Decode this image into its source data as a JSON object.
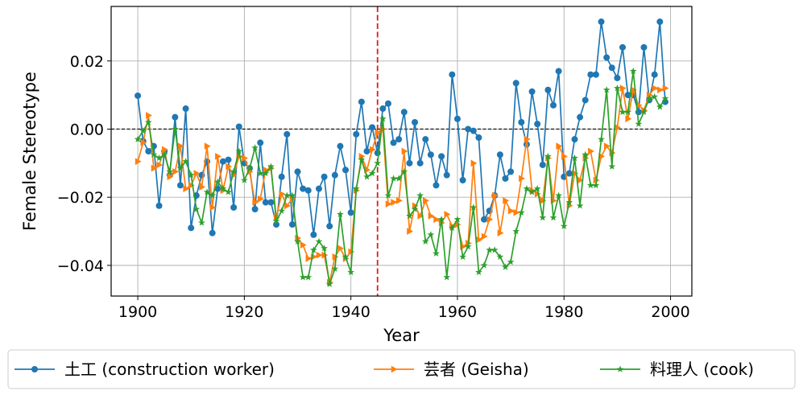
{
  "chart_data": {
    "type": "line",
    "xlabel": "Year",
    "ylabel": "Female Stereotype",
    "xlim": [
      1895,
      2004
    ],
    "ylim": [
      -0.049,
      0.036
    ],
    "xticks": [
      1900,
      1920,
      1940,
      1960,
      1980,
      2000
    ],
    "yticks": [
      -0.04,
      -0.02,
      0.0,
      0.02
    ],
    "ytick_labels": [
      "−0.04",
      "−0.02",
      "0.00",
      "0.02"
    ],
    "grid": true,
    "reference_lines": {
      "y": 0,
      "x": 1945
    },
    "legend_position": "bottom",
    "colors": {
      "construction": "#1f77b4",
      "geisha": "#ff7f0e",
      "cook": "#2ca02c",
      "vline": "#e41a1c"
    },
    "x": [
      1900,
      1901,
      1902,
      1903,
      1904,
      1905,
      1906,
      1907,
      1908,
      1909,
      1910,
      1911,
      1912,
      1913,
      1914,
      1915,
      1916,
      1917,
      1918,
      1919,
      1920,
      1921,
      1922,
      1923,
      1924,
      1925,
      1926,
      1927,
      1928,
      1929,
      1930,
      1931,
      1932,
      1933,
      1934,
      1935,
      1936,
      1937,
      1938,
      1939,
      1940,
      1941,
      1942,
      1943,
      1944,
      1945,
      1946,
      1947,
      1948,
      1949,
      1950,
      1951,
      1952,
      1953,
      1954,
      1955,
      1956,
      1957,
      1958,
      1959,
      1960,
      1961,
      1962,
      1963,
      1964,
      1965,
      1966,
      1967,
      1968,
      1969,
      1970,
      1971,
      1972,
      1973,
      1974,
      1975,
      1976,
      1977,
      1978,
      1979,
      1980,
      1981,
      1982,
      1983,
      1984,
      1985,
      1986,
      1987,
      1988,
      1989,
      1990,
      1991,
      1992,
      1993,
      1994,
      1995,
      1996,
      1997,
      1998,
      1999
    ],
    "series": [
      {
        "name": "土工 (construction worker)",
        "marker": "circle",
        "values": [
          0.0098,
          -0.0035,
          -0.0065,
          -0.005,
          -0.0225,
          -0.0065,
          -0.0135,
          0.0035,
          -0.0165,
          0.006,
          -0.029,
          -0.0195,
          -0.0135,
          -0.0095,
          -0.0305,
          -0.0175,
          -0.0095,
          -0.009,
          -0.023,
          0.0007,
          -0.01,
          -0.0115,
          -0.0235,
          -0.004,
          -0.0215,
          -0.0215,
          -0.028,
          -0.014,
          -0.0015,
          -0.028,
          -0.0125,
          -0.0175,
          -0.018,
          -0.031,
          -0.0175,
          -0.014,
          -0.0285,
          -0.0135,
          -0.005,
          -0.012,
          -0.0245,
          -0.0015,
          0.008,
          -0.0065,
          0.0005,
          -0.007,
          0.006,
          0.0075,
          -0.004,
          -0.003,
          0.005,
          -0.01,
          0.002,
          -0.01,
          -0.003,
          -0.0075,
          -0.0165,
          -0.008,
          -0.0135,
          0.016,
          0.003,
          -0.015,
          0.0,
          -0.0005,
          -0.0025,
          -0.0265,
          -0.024,
          -0.0195,
          -0.0075,
          -0.0145,
          -0.0125,
          0.0135,
          0.002,
          -0.0045,
          0.011,
          0.0015,
          -0.0105,
          0.0115,
          0.007,
          0.017,
          -0.014,
          -0.013,
          -0.003,
          0.0035,
          0.0085,
          0.016,
          0.016,
          0.0315,
          0.021,
          0.018,
          0.015,
          0.024,
          0.01,
          0.01,
          0.005,
          0.024,
          0.0085,
          0.016,
          0.0315,
          0.008
        ]
      },
      {
        "name": "芸者 (Geisha)",
        "marker": "triangle",
        "values": [
          -0.0095,
          -0.004,
          0.004,
          -0.0115,
          -0.0105,
          -0.006,
          -0.014,
          -0.0125,
          -0.005,
          -0.0175,
          -0.0165,
          -0.013,
          -0.017,
          -0.005,
          -0.023,
          -0.008,
          -0.018,
          -0.011,
          -0.0135,
          -0.008,
          -0.0085,
          -0.0125,
          -0.0215,
          -0.0205,
          -0.012,
          -0.0115,
          -0.026,
          -0.019,
          -0.0225,
          -0.0205,
          -0.032,
          -0.034,
          -0.038,
          -0.0375,
          -0.037,
          -0.037,
          -0.045,
          -0.0375,
          -0.035,
          -0.038,
          -0.036,
          -0.018,
          -0.008,
          -0.012,
          -0.006,
          -0.001,
          0.0,
          -0.022,
          -0.0215,
          -0.021,
          -0.0065,
          -0.03,
          -0.0225,
          -0.0255,
          -0.021,
          -0.0255,
          -0.0265,
          -0.0275,
          -0.025,
          -0.0285,
          -0.028,
          -0.0345,
          -0.0335,
          -0.01,
          -0.0325,
          -0.0315,
          -0.0265,
          -0.0195,
          -0.0305,
          -0.021,
          -0.024,
          -0.0245,
          -0.0145,
          -0.003,
          -0.018,
          -0.019,
          -0.021,
          -0.0085,
          -0.021,
          -0.005,
          -0.008,
          -0.0225,
          -0.013,
          -0.015,
          -0.0085,
          -0.0065,
          -0.015,
          -0.008,
          -0.005,
          -0.007,
          0.0005,
          0.012,
          0.003,
          0.0115,
          0.007,
          0.0055,
          0.01,
          0.012,
          0.0115,
          0.012
        ]
      },
      {
        "name": "料理人 (cook)",
        "marker": "star",
        "values": [
          -0.003,
          -0.0005,
          0.002,
          -0.0075,
          -0.0085,
          -0.0075,
          -0.0125,
          0.0,
          -0.0115,
          -0.0095,
          -0.0135,
          -0.0235,
          -0.0275,
          -0.0185,
          -0.0195,
          -0.0155,
          -0.0175,
          -0.0185,
          -0.0125,
          -0.0065,
          -0.015,
          -0.0115,
          -0.0055,
          -0.013,
          -0.013,
          -0.011,
          -0.027,
          -0.024,
          -0.0195,
          -0.0195,
          -0.033,
          -0.0435,
          -0.0435,
          -0.0355,
          -0.033,
          -0.035,
          -0.0455,
          -0.041,
          -0.025,
          -0.0375,
          -0.042,
          -0.0175,
          -0.009,
          -0.014,
          -0.013,
          -0.01,
          0.003,
          -0.0195,
          -0.0145,
          -0.0145,
          -0.0125,
          -0.0255,
          -0.0235,
          -0.0195,
          -0.033,
          -0.031,
          -0.0365,
          -0.0265,
          -0.0435,
          -0.029,
          -0.0265,
          -0.0375,
          -0.0345,
          -0.023,
          -0.042,
          -0.04,
          -0.0355,
          -0.0355,
          -0.0375,
          -0.0405,
          -0.039,
          -0.03,
          -0.0245,
          -0.0175,
          -0.0185,
          -0.0175,
          -0.026,
          -0.008,
          -0.026,
          -0.0195,
          -0.0285,
          -0.0215,
          -0.0085,
          -0.0225,
          -0.0075,
          -0.0165,
          -0.0165,
          -0.003,
          0.0115,
          -0.011,
          0.012,
          0.005,
          0.005,
          0.017,
          0.0015,
          0.005,
          0.009,
          0.0095,
          0.0065,
          0.009
        ]
      }
    ]
  }
}
